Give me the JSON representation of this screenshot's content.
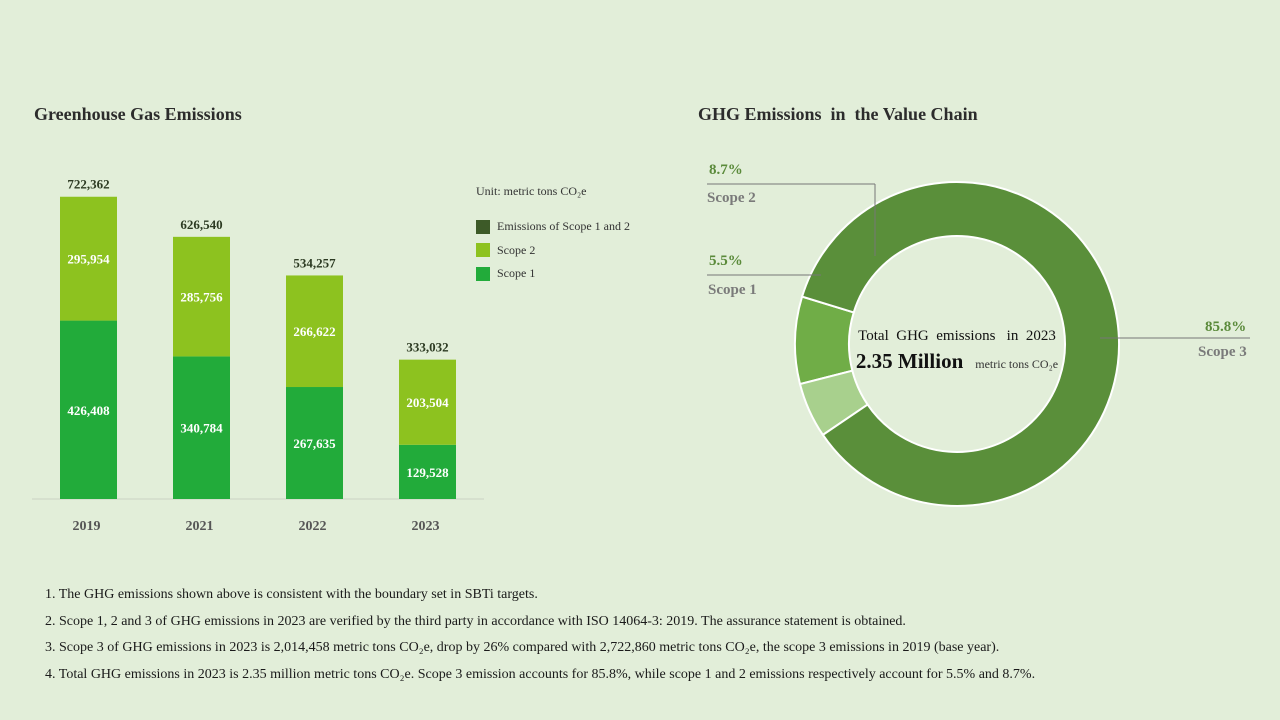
{
  "left_title": "Greenhouse Gas Emissions",
  "right_title": "GHG Emissions  in  the Value Chain",
  "legend": {
    "unit": "Unit: metric tons CO₂e",
    "items": [
      {
        "label": "Emissions of Scope 1 and 2",
        "color": "#3d5a28"
      },
      {
        "label": "Scope 2",
        "color": "#8dc21f"
      },
      {
        "label": "Scope 1",
        "color": "#22ab3a"
      }
    ]
  },
  "donut_center": {
    "line1": "Total  GHG  emissions   in  2023",
    "value": "2.35 Million",
    "unit": "metric  tons CO₂e"
  },
  "callouts": {
    "scope2": {
      "pct": "8.7%",
      "name": "Scope 2"
    },
    "scope1": {
      "pct": "5.5%",
      "name": "Scope 1"
    },
    "scope3": {
      "pct": "85.8%",
      "name": "Scope 3"
    }
  },
  "notes": [
    "1. The GHG emissions shown above is consistent with the boundary set in SBTi targets.",
    "2. Scope 1, 2 and 3 of GHG emissions in 2023  are verified by the third party in accordance with ISO 14064-3:  2019.  The assurance statement is obtained.",
    "3. Scope 3 of GHG emissions in 2023 is 2,014,458  metric tons CO₂e, drop by 26% compared with 2,722,860  metric tons CO₂e, the scope 3 emissions in 2019 (base year).",
    "4. Total GHG emissions in 2023 is 2.35 million  metric tons CO₂e. Scope 3 emission accounts for 85.8%, while scope 1 and 2 emissions respectively account for 5.5% and 8.7%."
  ],
  "chart_data": [
    {
      "type": "bar",
      "stacked": true,
      "title": "Greenhouse Gas Emissions",
      "categories": [
        "2019",
        "2021",
        "2022",
        "2023"
      ],
      "series": [
        {
          "name": "Scope 1",
          "values": [
            426408,
            340784,
            267635,
            129528
          ],
          "labels": [
            "426,408",
            "340,784",
            "267,635",
            "129,528"
          ],
          "color": "#22ab3a"
        },
        {
          "name": "Scope 2",
          "values": [
            295954,
            285756,
            266622,
            203504
          ],
          "labels": [
            "295,954",
            "285,756",
            "266,622",
            "203,504"
          ],
          "color": "#8dc21f"
        }
      ],
      "totals": [
        722362,
        626540,
        534257,
        333032
      ],
      "total_labels": [
        "722,362",
        "626,540",
        "534,257",
        "333,032"
      ],
      "ylim": [
        0,
        760000
      ],
      "grid": false,
      "legend": "right"
    },
    {
      "type": "pie",
      "donut": true,
      "title": "GHG Emissions  in  the Value Chain",
      "labels": [
        "Scope 3",
        "Scope 1",
        "Scope 2"
      ],
      "values": [
        85.8,
        5.5,
        8.7
      ],
      "colors": [
        "#5a8f3a",
        "#a8d08d",
        "#70ad47"
      ]
    }
  ]
}
